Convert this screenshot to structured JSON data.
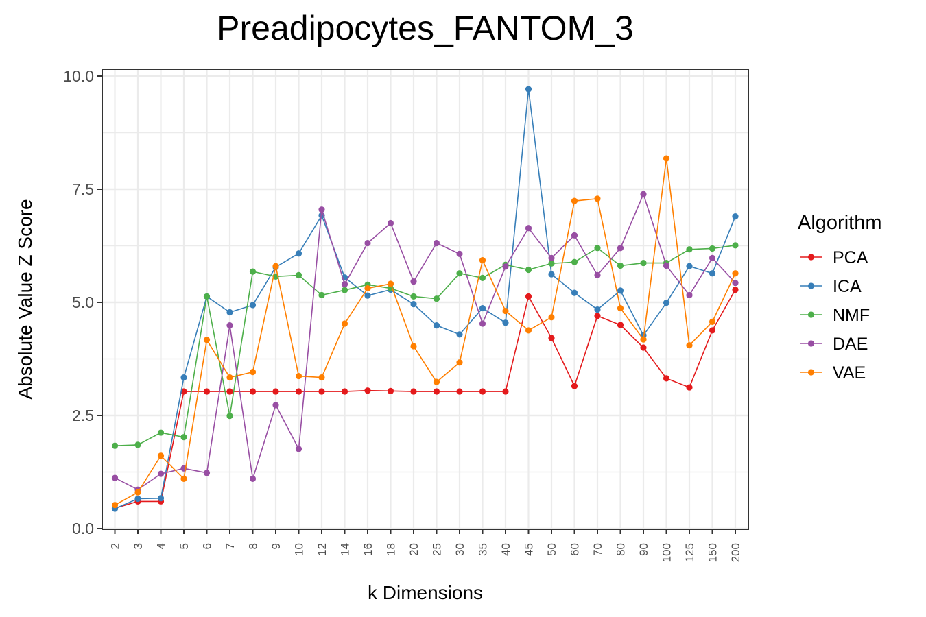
{
  "chart_data": {
    "type": "line",
    "title": "Preadipocytes_FANTOM_3",
    "xlabel": "k Dimensions",
    "ylabel": "Absolute Value Z Score",
    "ylim": [
      0,
      10
    ],
    "yticks": [
      "0.0",
      "2.5",
      "5.0",
      "7.5",
      "10.0"
    ],
    "categories": [
      "2",
      "3",
      "4",
      "5",
      "6",
      "7",
      "8",
      "9",
      "10",
      "12",
      "14",
      "16",
      "18",
      "20",
      "25",
      "30",
      "35",
      "40",
      "45",
      "50",
      "60",
      "70",
      "80",
      "90",
      "100",
      "125",
      "150",
      "200"
    ],
    "grid": true,
    "legend": {
      "title": "Algorithm",
      "position": "right"
    },
    "series": [
      {
        "name": "PCA",
        "color": "#e41a1c",
        "values": [
          0.45,
          0.6,
          0.6,
          3.03,
          3.03,
          3.03,
          3.03,
          3.03,
          3.03,
          3.03,
          3.03,
          3.05,
          3.04,
          3.03,
          3.03,
          3.03,
          3.03,
          3.03,
          5.13,
          4.21,
          3.15,
          4.7,
          4.5,
          4.0,
          3.32,
          3.12,
          4.38,
          5.28
        ]
      },
      {
        "name": "ICA",
        "color": "#377eb8",
        "values": [
          0.44,
          0.66,
          0.67,
          3.34,
          5.13,
          4.78,
          4.94,
          5.78,
          6.08,
          6.92,
          5.55,
          5.15,
          5.28,
          4.96,
          4.49,
          4.29,
          4.87,
          4.55,
          9.71,
          5.62,
          5.21,
          4.84,
          5.26,
          4.27,
          4.99,
          5.8,
          5.64,
          6.9
        ]
      },
      {
        "name": "NMF",
        "color": "#4daf4a",
        "values": [
          1.83,
          1.85,
          2.12,
          2.02,
          5.13,
          2.49,
          5.68,
          5.57,
          5.6,
          5.16,
          5.27,
          5.39,
          5.31,
          5.13,
          5.08,
          5.64,
          5.54,
          5.83,
          5.72,
          5.86,
          5.89,
          6.2,
          5.81,
          5.87,
          5.87,
          6.17,
          6.19,
          6.26
        ]
      },
      {
        "name": "DAE",
        "color": "#984ea3",
        "values": [
          1.12,
          0.86,
          1.21,
          1.33,
          1.23,
          4.49,
          1.1,
          2.73,
          1.76,
          7.05,
          5.4,
          6.31,
          6.75,
          5.46,
          6.31,
          6.07,
          4.53,
          5.79,
          6.64,
          5.98,
          6.48,
          5.6,
          6.2,
          7.39,
          5.81,
          5.16,
          5.98,
          5.43
        ]
      },
      {
        "name": "VAE",
        "color": "#ff7f00",
        "values": [
          0.52,
          0.8,
          1.61,
          1.1,
          4.17,
          3.34,
          3.46,
          5.8,
          3.37,
          3.34,
          4.53,
          5.31,
          5.41,
          4.03,
          3.24,
          3.67,
          5.93,
          4.81,
          4.38,
          4.67,
          7.24,
          7.29,
          4.87,
          4.18,
          8.18,
          4.05,
          4.57,
          5.64
        ]
      }
    ]
  }
}
